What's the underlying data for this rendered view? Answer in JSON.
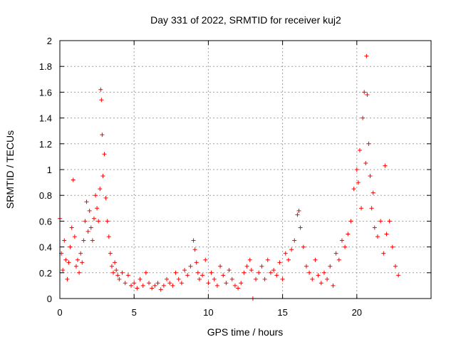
{
  "chart_data": {
    "type": "scatter",
    "title": "Day 331 of 2022, SRMTID for receiver kuj2",
    "xlabel": "GPS time / hours",
    "ylabel": "SRMTID / TECUs",
    "xlim": [
      0,
      25
    ],
    "ylim": [
      0,
      2
    ],
    "xticks": [
      0,
      5,
      10,
      15,
      20
    ],
    "yticks": [
      0,
      0.2,
      0.4,
      0.6,
      0.8,
      1,
      1.2,
      1.4,
      1.6,
      1.8,
      2
    ],
    "grid": true,
    "marker": "+",
    "series": [
      {
        "name": "SRMTID",
        "color": "#ff0000",
        "x": [
          0.0,
          0.1,
          0.2,
          0.3,
          0.4,
          0.5,
          0.6,
          0.7,
          0.8,
          0.9,
          1.0,
          1.1,
          1.2,
          1.3,
          1.4,
          1.5,
          1.6,
          1.7,
          1.8,
          1.9,
          2.0,
          2.1,
          2.2,
          2.3,
          2.4,
          2.5,
          2.6,
          2.7,
          2.75,
          2.8,
          2.85,
          2.9,
          3.0,
          3.1,
          3.2,
          3.3,
          3.4,
          3.5,
          3.6,
          3.7,
          3.8,
          3.9,
          4.0,
          4.2,
          4.4,
          4.6,
          4.8,
          5.0,
          5.2,
          5.4,
          5.6,
          5.8,
          6.0,
          6.2,
          6.4,
          6.6,
          6.8,
          7.0,
          7.2,
          7.4,
          7.6,
          7.8,
          8.0,
          8.2,
          8.4,
          8.6,
          8.8,
          9.0,
          9.1,
          9.2,
          9.3,
          9.4,
          9.6,
          9.8,
          10.0,
          10.2,
          10.4,
          10.6,
          10.8,
          11.0,
          11.2,
          11.4,
          11.6,
          11.8,
          12.0,
          12.2,
          12.4,
          12.6,
          12.8,
          12.9,
          13.0,
          13.2,
          13.4,
          13.6,
          13.8,
          14.0,
          14.2,
          14.4,
          14.6,
          14.8,
          15.0,
          15.2,
          15.4,
          15.6,
          15.8,
          16.0,
          16.1,
          16.2,
          16.4,
          16.6,
          16.8,
          17.0,
          17.2,
          17.4,
          17.6,
          17.8,
          18.0,
          18.2,
          18.4,
          18.6,
          18.8,
          19.0,
          19.2,
          19.4,
          19.6,
          19.8,
          20.0,
          20.1,
          20.2,
          20.3,
          20.4,
          20.5,
          20.6,
          20.65,
          20.7,
          20.8,
          20.9,
          21.0,
          21.1,
          21.2,
          21.4,
          21.6,
          21.8,
          21.9,
          22.0,
          22.2,
          22.4,
          22.6,
          22.8
        ],
        "y": [
          0.62,
          0.35,
          0.22,
          0.45,
          0.3,
          0.15,
          0.28,
          0.4,
          0.55,
          0.92,
          0.48,
          0.25,
          0.3,
          0.2,
          0.35,
          0.28,
          0.45,
          0.6,
          0.75,
          0.52,
          0.68,
          0.55,
          0.45,
          0.62,
          0.8,
          0.7,
          0.6,
          0.85,
          1.62,
          1.54,
          1.27,
          0.95,
          1.12,
          0.78,
          0.6,
          0.48,
          0.35,
          0.25,
          0.2,
          0.28,
          0.22,
          0.18,
          0.15,
          0.2,
          0.12,
          0.18,
          0.1,
          0.12,
          0.08,
          0.15,
          0.1,
          0.2,
          0.12,
          0.08,
          0.1,
          0.12,
          0.07,
          0.1,
          0.15,
          0.12,
          0.1,
          0.2,
          0.15,
          0.12,
          0.22,
          0.18,
          0.25,
          0.45,
          0.38,
          0.28,
          0.2,
          0.15,
          0.18,
          0.3,
          0.12,
          0.2,
          0.15,
          0.1,
          0.25,
          0.18,
          0.12,
          0.22,
          0.15,
          0.1,
          0.08,
          0.12,
          0.2,
          0.25,
          0.3,
          0.22,
          0.0,
          0.15,
          0.2,
          0.25,
          0.15,
          0.3,
          0.2,
          0.22,
          0.18,
          0.28,
          0.15,
          0.35,
          0.3,
          0.38,
          0.45,
          0.65,
          0.68,
          0.55,
          0.4,
          0.25,
          0.2,
          0.15,
          0.3,
          0.18,
          0.12,
          0.2,
          0.15,
          0.25,
          0.1,
          0.35,
          0.3,
          0.45,
          0.4,
          0.5,
          0.6,
          0.85,
          1.0,
          0.9,
          1.15,
          0.7,
          1.4,
          1.6,
          1.05,
          1.88,
          1.58,
          1.2,
          0.95,
          0.7,
          0.82,
          0.55,
          0.48,
          0.6,
          0.35,
          1.03,
          0.5,
          0.6,
          0.4,
          0.25,
          0.18
        ]
      }
    ]
  }
}
